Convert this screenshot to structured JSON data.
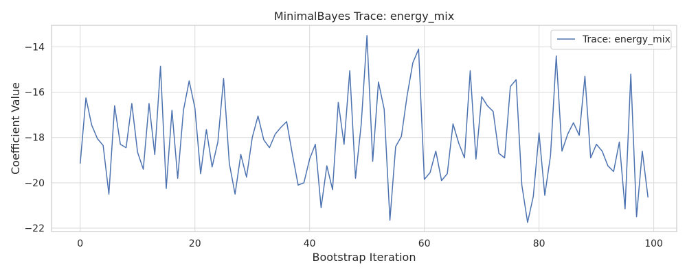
{
  "chart_data": {
    "type": "line",
    "title": "MinimalBayes Trace: energy_mix",
    "xlabel": "Bootstrap Iteration",
    "ylabel": "Coefficient Value",
    "xlim": [
      -5,
      104
    ],
    "ylim": [
      -22.15,
      -13.05
    ],
    "xticks": [
      0,
      20,
      40,
      60,
      80,
      100
    ],
    "xtick_labels": [
      "0",
      "20",
      "40",
      "60",
      "80",
      "100"
    ],
    "yticks": [
      -14,
      -16,
      -18,
      -20,
      -22
    ],
    "ytick_labels": [
      "−14",
      "−16",
      "−18",
      "−20",
      "−22"
    ],
    "grid": true,
    "legend_position": "top-right",
    "series": [
      {
        "name": "Trace: energy_mix",
        "color": "#4c72b0",
        "x": [
          0,
          1,
          2,
          3,
          4,
          5,
          6,
          7,
          8,
          9,
          10,
          11,
          12,
          13,
          14,
          15,
          16,
          17,
          18,
          19,
          20,
          21,
          22,
          23,
          24,
          25,
          26,
          27,
          28,
          29,
          30,
          31,
          32,
          33,
          34,
          35,
          36,
          37,
          38,
          39,
          40,
          41,
          42,
          43,
          44,
          45,
          46,
          47,
          48,
          49,
          50,
          51,
          52,
          53,
          54,
          55,
          56,
          57,
          58,
          59,
          60,
          61,
          62,
          63,
          64,
          65,
          66,
          67,
          68,
          69,
          70,
          71,
          72,
          73,
          74,
          75,
          76,
          77,
          78,
          79,
          80,
          81,
          82,
          83,
          84,
          85,
          86,
          87,
          88,
          89,
          90,
          91,
          92,
          93,
          94,
          95,
          96,
          97,
          98,
          99
        ],
        "values": [
          -19.15,
          -16.25,
          -17.45,
          -18.05,
          -18.35,
          -20.5,
          -16.6,
          -18.3,
          -18.45,
          -16.5,
          -18.65,
          -19.4,
          -16.5,
          -18.75,
          -14.85,
          -20.25,
          -16.8,
          -19.8,
          -16.8,
          -15.5,
          -16.7,
          -19.6,
          -17.65,
          -19.3,
          -18.2,
          -15.4,
          -19.15,
          -20.5,
          -18.75,
          -19.75,
          -18.0,
          -17.05,
          -18.1,
          -18.45,
          -17.85,
          -17.55,
          -17.3,
          -18.75,
          -20.1,
          -20.0,
          -18.95,
          -18.3,
          -21.1,
          -19.25,
          -20.3,
          -16.45,
          -18.3,
          -15.05,
          -19.8,
          -17.4,
          -13.5,
          -19.05,
          -15.55,
          -16.75,
          -21.65,
          -18.4,
          -17.95,
          -16.15,
          -14.7,
          -14.1,
          -19.85,
          -19.55,
          -18.6,
          -19.9,
          -19.6,
          -17.4,
          -18.25,
          -18.9,
          -15.05,
          -18.95,
          -16.2,
          -16.6,
          -16.85,
          -18.7,
          -18.9,
          -15.75,
          -15.45,
          -20.1,
          -21.75,
          -20.6,
          -17.8,
          -20.55,
          -18.8,
          -14.4,
          -18.6,
          -17.85,
          -17.35,
          -17.9,
          -15.3,
          -18.9,
          -18.3,
          -18.6,
          -19.25,
          -19.5,
          -18.2,
          -21.15,
          -15.2,
          -21.5,
          -18.6,
          -20.65
        ]
      }
    ]
  }
}
